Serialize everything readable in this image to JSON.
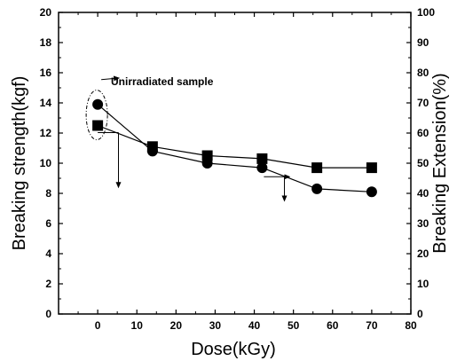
{
  "chart_data": {
    "type": "scatter",
    "title": "",
    "xlabel": "Dose(kGy)",
    "ylabel_left": "Breaking strength(kgf)",
    "ylabel_right": "Breaking Extension(%)",
    "xlim": [
      -10,
      80
    ],
    "ylim_left": [
      0,
      20
    ],
    "ylim_right": [
      0,
      100
    ],
    "x_ticks": [
      "0",
      "10",
      "20",
      "30",
      "40",
      "50",
      "60",
      "70",
      "80"
    ],
    "y_left_ticks": [
      "0",
      "2",
      "4",
      "6",
      "8",
      "10",
      "12",
      "14",
      "16",
      "18",
      "20"
    ],
    "y_right_ticks": [
      "0",
      "10",
      "20",
      "30",
      "40",
      "50",
      "60",
      "70",
      "80",
      "90",
      "100"
    ],
    "series": [
      {
        "marker": "circle",
        "axis": "left",
        "x": [
          0,
          14,
          28,
          42,
          56,
          70
        ],
        "y": [
          13.9,
          10.8,
          10.0,
          9.7,
          8.3,
          8.1
        ]
      },
      {
        "marker": "square",
        "axis": "right",
        "x": [
          0,
          14,
          28,
          42,
          56,
          70
        ],
        "y": [
          62.5,
          55.5,
          52.5,
          51.5,
          48.5,
          48.5
        ]
      }
    ],
    "annotations": [
      {
        "text": "Unirradiated sample"
      }
    ],
    "grid": false,
    "legend": "none"
  }
}
